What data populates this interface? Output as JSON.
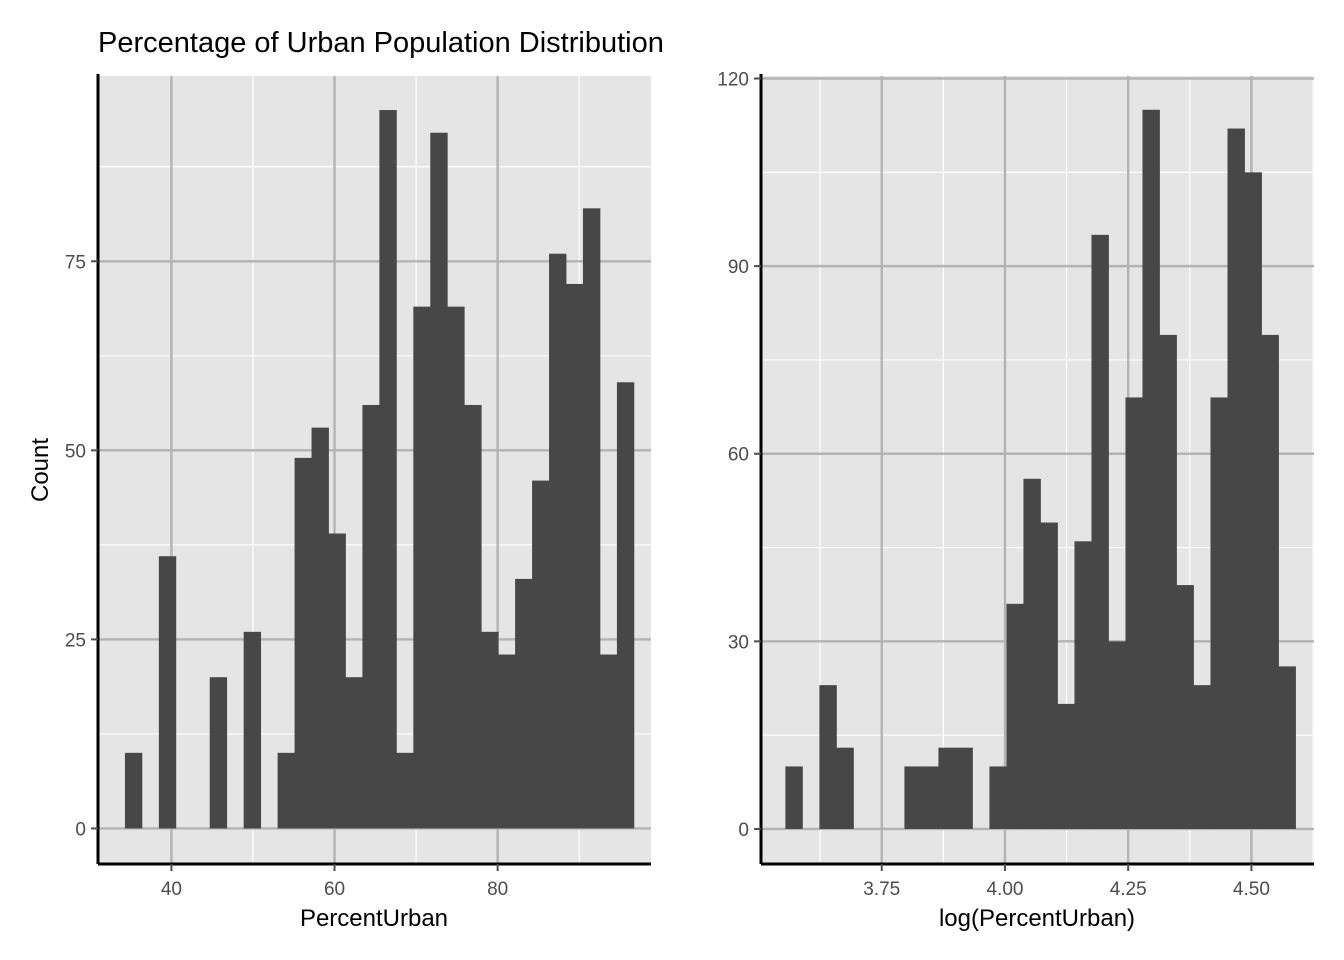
{
  "title": "Percentage of Urban Population Distribution",
  "colors": {
    "panel_bg": "#E5E5E5",
    "bar": "#474747",
    "grid_major": "#B3B3B3",
    "grid_minor": "#FFFFFF",
    "axis": "#000000",
    "tick_text": "#4D4D4D"
  },
  "chart_data": [
    {
      "type": "bar",
      "subtype": "histogram",
      "xlabel": "PercentUrban",
      "ylabel": "Count",
      "xlim": [
        31,
        98.8
      ],
      "ylim": [
        -4.7,
        99.5
      ],
      "xticks": [
        40,
        60,
        80
      ],
      "xtick_labels": [
        "40",
        "60",
        "80"
      ],
      "yticks": [
        0,
        25,
        50,
        75
      ],
      "ytick_labels": [
        "0",
        "25",
        "50",
        "75"
      ],
      "bin_width": 2.08,
      "bins": [
        {
          "x0": 34.3,
          "x1": 36.38,
          "count": 10
        },
        {
          "x0": 38.46,
          "x1": 40.54,
          "count": 36
        },
        {
          "x0": 44.7,
          "x1": 46.78,
          "count": 20
        },
        {
          "x0": 48.86,
          "x1": 50.94,
          "count": 26
        },
        {
          "x0": 53.02,
          "x1": 55.1,
          "count": 10
        },
        {
          "x0": 55.1,
          "x1": 57.18,
          "count": 49
        },
        {
          "x0": 57.18,
          "x1": 59.26,
          "count": 53
        },
        {
          "x0": 59.26,
          "x1": 61.34,
          "count": 39
        },
        {
          "x0": 61.34,
          "x1": 63.42,
          "count": 20
        },
        {
          "x0": 63.42,
          "x1": 65.5,
          "count": 56
        },
        {
          "x0": 65.5,
          "x1": 67.58,
          "count": 95
        },
        {
          "x0": 67.58,
          "x1": 69.66,
          "count": 10
        },
        {
          "x0": 69.66,
          "x1": 71.74,
          "count": 69
        },
        {
          "x0": 71.74,
          "x1": 73.82,
          "count": 92
        },
        {
          "x0": 73.82,
          "x1": 75.9,
          "count": 69
        },
        {
          "x0": 75.9,
          "x1": 77.98,
          "count": 56
        },
        {
          "x0": 77.98,
          "x1": 80.06,
          "count": 26
        },
        {
          "x0": 80.06,
          "x1": 82.14,
          "count": 23
        },
        {
          "x0": 82.14,
          "x1": 84.22,
          "count": 33
        },
        {
          "x0": 84.22,
          "x1": 86.3,
          "count": 46
        },
        {
          "x0": 86.3,
          "x1": 88.38,
          "count": 76
        },
        {
          "x0": 88.38,
          "x1": 90.46,
          "count": 72
        },
        {
          "x0": 90.46,
          "x1": 92.54,
          "count": 82
        },
        {
          "x0": 92.54,
          "x1": 94.62,
          "count": 23
        },
        {
          "x0": 94.62,
          "x1": 96.7,
          "count": 59
        }
      ],
      "grid": true
    },
    {
      "type": "bar",
      "subtype": "histogram",
      "xlabel": "log(PercentUrban)",
      "ylabel": "",
      "xlim": [
        3.505,
        4.627
      ],
      "ylim": [
        -5.6,
        120.4
      ],
      "xticks": [
        3.75,
        4.0,
        4.25,
        4.5
      ],
      "xtick_labels": [
        "3.75",
        "4.00",
        "4.25",
        "4.50"
      ],
      "yticks": [
        0,
        30,
        60,
        90,
        120
      ],
      "ytick_labels": [
        "0",
        "30",
        "60",
        "90",
        "120"
      ],
      "bin_width": 0.0345,
      "bins": [
        {
          "x0": 3.5545,
          "x1": 3.589,
          "count": 10
        },
        {
          "x0": 3.6235,
          "x1": 3.658,
          "count": 23
        },
        {
          "x0": 3.658,
          "x1": 3.6925,
          "count": 13
        },
        {
          "x0": 3.796,
          "x1": 3.8305,
          "count": 10
        },
        {
          "x0": 3.8305,
          "x1": 3.865,
          "count": 10
        },
        {
          "x0": 3.865,
          "x1": 3.8995,
          "count": 13
        },
        {
          "x0": 3.8995,
          "x1": 3.934,
          "count": 13
        },
        {
          "x0": 3.9685,
          "x1": 4.003,
          "count": 10
        },
        {
          "x0": 4.003,
          "x1": 4.0375,
          "count": 36
        },
        {
          "x0": 4.0375,
          "x1": 4.072,
          "count": 56
        },
        {
          "x0": 4.072,
          "x1": 4.1065,
          "count": 49
        },
        {
          "x0": 4.1065,
          "x1": 4.141,
          "count": 20
        },
        {
          "x0": 4.141,
          "x1": 4.1755,
          "count": 46
        },
        {
          "x0": 4.1755,
          "x1": 4.21,
          "count": 95
        },
        {
          "x0": 4.21,
          "x1": 4.2445,
          "count": 30
        },
        {
          "x0": 4.2445,
          "x1": 4.279,
          "count": 69
        },
        {
          "x0": 4.279,
          "x1": 4.3135,
          "count": 115
        },
        {
          "x0": 4.3135,
          "x1": 4.348,
          "count": 79
        },
        {
          "x0": 4.348,
          "x1": 4.3825,
          "count": 39
        },
        {
          "x0": 4.3825,
          "x1": 4.417,
          "count": 23
        },
        {
          "x0": 4.417,
          "x1": 4.4515,
          "count": 69
        },
        {
          "x0": 4.4515,
          "x1": 4.486,
          "count": 112
        },
        {
          "x0": 4.486,
          "x1": 4.5205,
          "count": 105
        },
        {
          "x0": 4.5205,
          "x1": 4.555,
          "count": 79
        },
        {
          "x0": 4.555,
          "x1": 4.5895,
          "count": 26
        }
      ],
      "grid": true
    }
  ]
}
